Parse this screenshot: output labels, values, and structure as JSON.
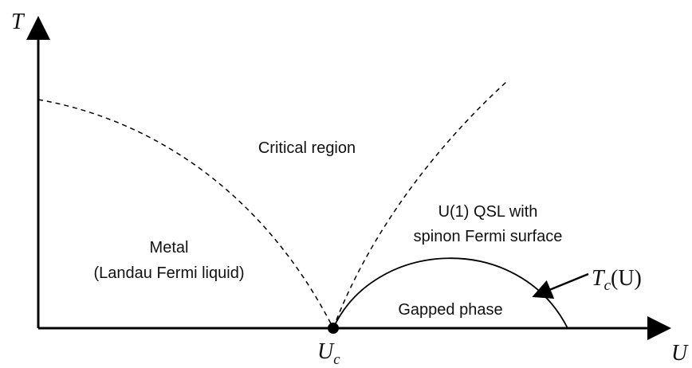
{
  "axes": {
    "y_label": "T",
    "x_label": "U"
  },
  "critical_point": {
    "main": "U",
    "sub": "c"
  },
  "regions": {
    "critical": "Critical region",
    "qsl": [
      "U(1) QSL with",
      "spinon Fermi surface"
    ],
    "metal": [
      "Metal",
      "(Landau Fermi liquid)"
    ],
    "gapped": "Gapped phase"
  },
  "transition_label": {
    "main": "T",
    "sub": "c",
    "arg": "(U)"
  }
}
